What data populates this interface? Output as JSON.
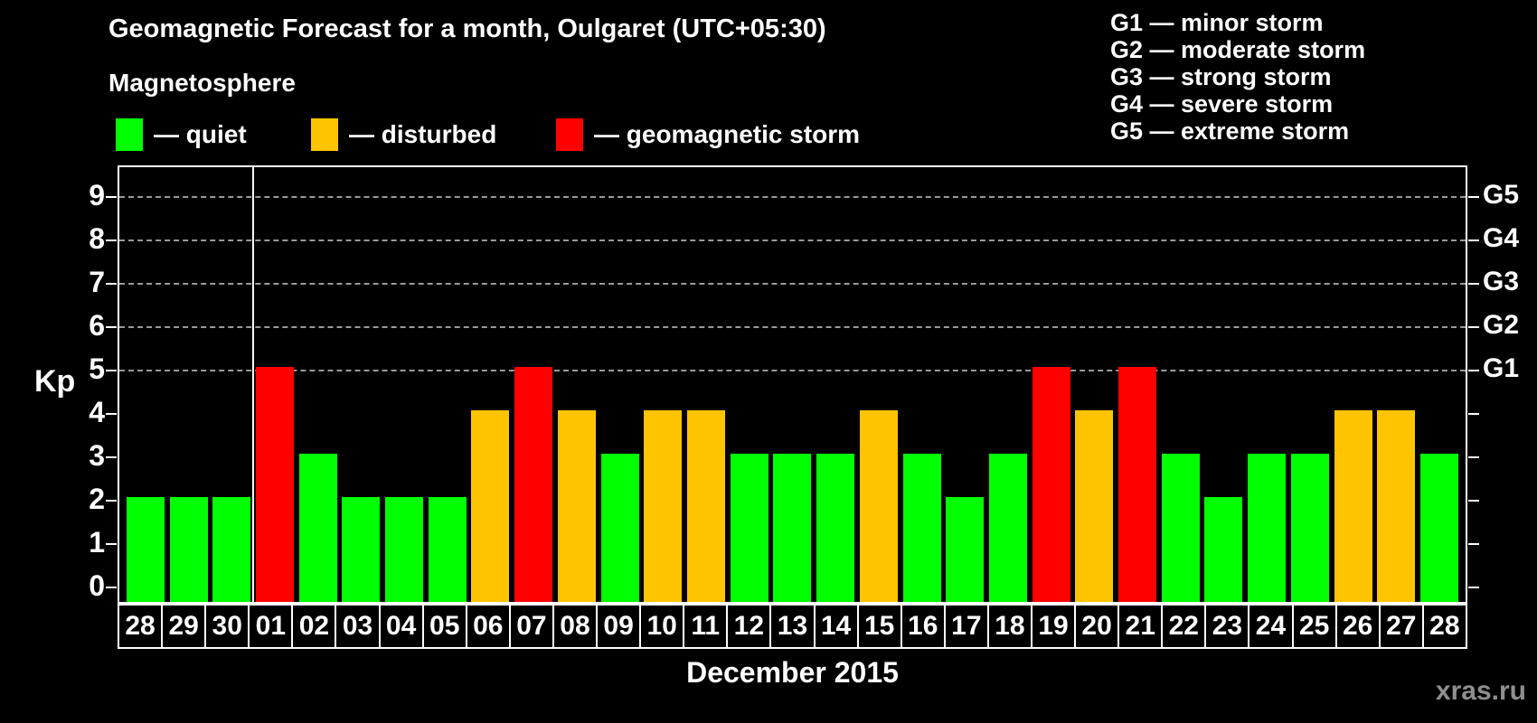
{
  "header": {
    "title": "Geomagnetic Forecast for a month, Oulgaret (UTC+05:30)",
    "subtitle": "Magnetosphere"
  },
  "legend": {
    "items": [
      {
        "label": "— quiet",
        "state": "quiet",
        "color": "#00ff00"
      },
      {
        "label": "— disturbed",
        "state": "disturbed",
        "color": "#ffc400"
      },
      {
        "label": "— geomagnetic storm",
        "state": "storm",
        "color": "#ff0000"
      }
    ]
  },
  "storm_scale": {
    "lines": [
      "G1 — minor storm",
      "G2 — moderate storm",
      "G3 — strong storm",
      "G4 — severe storm",
      "G5 — extreme storm"
    ]
  },
  "axes": {
    "y_label": "Kp",
    "y_ticks": [
      0,
      1,
      2,
      3,
      4,
      5,
      6,
      7,
      8,
      9
    ],
    "right_labels": [
      {
        "label": "G1",
        "kp": 5
      },
      {
        "label": "G2",
        "kp": 6
      },
      {
        "label": "G3",
        "kp": 7
      },
      {
        "label": "G4",
        "kp": 8
      },
      {
        "label": "G5",
        "kp": 9
      }
    ],
    "x_label": "December 2015"
  },
  "watermark": "xras.ru",
  "chart_data": {
    "type": "bar",
    "title": "Geomagnetic Forecast for a month, Oulgaret (UTC+05:30)",
    "xlabel": "December 2015",
    "ylabel": "Kp",
    "ylim": [
      0,
      9
    ],
    "grid_kp_levels": [
      5,
      6,
      7,
      8,
      9
    ],
    "legend_position": "top",
    "categories": [
      "28",
      "29",
      "30",
      "01",
      "02",
      "03",
      "04",
      "05",
      "06",
      "07",
      "08",
      "09",
      "10",
      "11",
      "12",
      "13",
      "14",
      "15",
      "16",
      "17",
      "18",
      "19",
      "20",
      "21",
      "22",
      "23",
      "24",
      "25",
      "26",
      "27",
      "28"
    ],
    "values": [
      2,
      2,
      2,
      5,
      3,
      2,
      2,
      2,
      4,
      5,
      4,
      3,
      4,
      4,
      3,
      3,
      3,
      4,
      3,
      2,
      3,
      5,
      4,
      5,
      3,
      2,
      3,
      3,
      4,
      4,
      3
    ],
    "states": [
      "quiet",
      "quiet",
      "quiet",
      "storm",
      "quiet",
      "quiet",
      "quiet",
      "quiet",
      "disturbed",
      "storm",
      "disturbed",
      "quiet",
      "disturbed",
      "disturbed",
      "quiet",
      "quiet",
      "quiet",
      "disturbed",
      "quiet",
      "quiet",
      "quiet",
      "storm",
      "disturbed",
      "storm",
      "quiet",
      "quiet",
      "quiet",
      "quiet",
      "disturbed",
      "disturbed",
      "quiet"
    ],
    "state_colors": {
      "quiet": "#00ff00",
      "disturbed": "#ffc400",
      "storm": "#ff0000"
    },
    "month_boundary_after_index": 2
  }
}
